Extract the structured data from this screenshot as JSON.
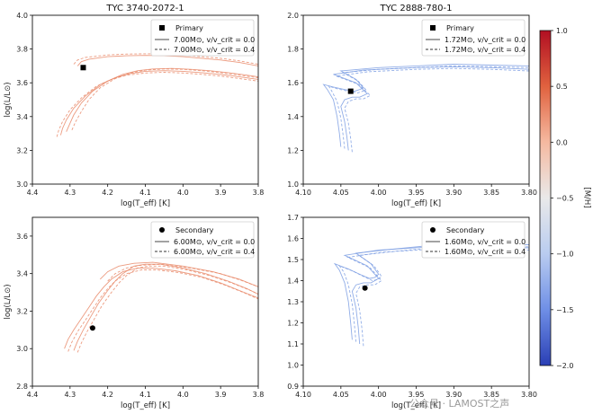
{
  "watermark": "公众号 · LAMOST之声",
  "colorbar": {
    "label": "[M/H]",
    "vmin": -2.0,
    "vmax": 1.0,
    "ticks": [
      "1.0",
      "0.5",
      "0.0",
      "−0.5",
      "−1.0",
      "−1.5",
      "−2.0"
    ],
    "colors": [
      "#2a3fb5",
      "#6f8fe6",
      "#b9ccf0",
      "#e9e9e9",
      "#f5b9a0",
      "#e0623f",
      "#b20f22"
    ]
  },
  "chart_data": [
    {
      "type": "line",
      "title": "TYC 3740-2072-1",
      "xlabel": "log(T_eff) [K]",
      "ylabel": "log(L/L⊙)",
      "xlim": [
        4.4,
        3.8
      ],
      "ylim": [
        3.0,
        4.0
      ],
      "xticks": [
        "4.4",
        "4.3",
        "4.2",
        "4.1",
        "4.0",
        "3.9",
        "3.8"
      ],
      "yticks": [
        "3.0",
        "3.2",
        "3.4",
        "3.6",
        "3.8",
        "4.0"
      ],
      "color": "#e98a6a",
      "legend": {
        "placement": "top-right",
        "star": "Primary",
        "marker": "square",
        "line1": "7.00M⊙, v/v_crit = 0.0",
        "line2": "7.00M⊙, v/v_crit = 0.4"
      },
      "star_point": {
        "x": 4.265,
        "y": 3.69
      },
      "series": [
        {
          "dashed": false,
          "x": [
            4.325,
            4.32,
            4.31,
            4.29,
            4.26,
            4.22,
            4.18,
            4.14,
            4.1,
            4.05,
            4.0,
            3.95,
            3.9,
            3.85,
            3.8
          ],
          "y": [
            3.29,
            3.33,
            3.38,
            3.45,
            3.52,
            3.59,
            3.63,
            3.655,
            3.668,
            3.672,
            3.668,
            3.66,
            3.65,
            3.635,
            3.62
          ]
        },
        {
          "dashed": false,
          "x": [
            4.31,
            4.3,
            4.29,
            4.27,
            4.24,
            4.2,
            4.16,
            4.12,
            4.08,
            4.03,
            3.98,
            3.93,
            3.88,
            3.83,
            3.8
          ],
          "y": [
            3.31,
            3.36,
            3.41,
            3.48,
            3.55,
            3.61,
            3.65,
            3.672,
            3.682,
            3.685,
            3.68,
            3.672,
            3.66,
            3.645,
            3.635
          ]
        },
        {
          "dashed": false,
          "x": [
            4.28,
            4.27,
            4.25,
            4.2,
            4.15,
            4.1,
            4.05,
            4.0,
            3.95,
            3.9,
            3.85,
            3.8
          ],
          "y": [
            3.7,
            3.725,
            3.74,
            3.755,
            3.76,
            3.762,
            3.76,
            3.755,
            3.745,
            3.735,
            3.72,
            3.7
          ]
        },
        {
          "dashed": true,
          "x": [
            4.335,
            4.33,
            4.32,
            4.3,
            4.27,
            4.23,
            4.19,
            4.15,
            4.1,
            4.05,
            4.0,
            3.95,
            3.9,
            3.85,
            3.8
          ],
          "y": [
            3.28,
            3.32,
            3.37,
            3.44,
            3.51,
            3.58,
            3.62,
            3.645,
            3.658,
            3.662,
            3.658,
            3.65,
            3.64,
            3.625,
            3.61
          ]
        },
        {
          "dashed": true,
          "x": [
            4.295,
            4.285,
            4.27,
            4.25,
            4.22,
            4.18,
            4.14,
            4.1,
            4.05,
            4.0,
            3.95,
            3.9,
            3.85,
            3.8
          ],
          "y": [
            3.32,
            3.37,
            3.43,
            3.5,
            3.57,
            3.625,
            3.658,
            3.675,
            3.682,
            3.68,
            3.672,
            3.66,
            3.645,
            3.63
          ]
        },
        {
          "dashed": true,
          "x": [
            4.29,
            4.28,
            4.26,
            4.2,
            4.15,
            4.1,
            4.05,
            4.0,
            3.95,
            3.9,
            3.85,
            3.8
          ],
          "y": [
            3.71,
            3.735,
            3.75,
            3.765,
            3.77,
            3.772,
            3.77,
            3.765,
            3.755,
            3.745,
            3.73,
            3.71
          ]
        }
      ]
    },
    {
      "type": "line",
      "title": "TYC 2888-780-1",
      "xlabel": "log(T_eff) [K]",
      "ylabel": "",
      "xlim": [
        4.1,
        3.8
      ],
      "ylim": [
        1.0,
        2.0
      ],
      "xticks": [
        "4.10",
        "4.05",
        "4.00",
        "3.95",
        "3.90",
        "3.85",
        "3.80"
      ],
      "yticks": [
        "1.0",
        "1.2",
        "1.4",
        "1.6",
        "1.8",
        "2.0"
      ],
      "color": "#7e9fe3",
      "legend": {
        "placement": "top-right",
        "star": "Primary",
        "marker": "square",
        "line1": "1.72M⊙, v/v_crit = 0.0",
        "line2": "1.72M⊙, v/v_crit = 0.4"
      },
      "star_point": {
        "x": 4.037,
        "y": 1.55
      },
      "series": [
        {
          "dashed": false,
          "x": [
            4.05,
            4.052,
            4.055,
            4.06,
            4.068,
            4.073,
            4.06,
            4.045,
            4.032,
            4.025,
            4.02,
            4.03,
            4.05,
            4.0,
            3.95,
            3.9,
            3.85,
            3.8
          ],
          "y": [
            1.22,
            1.3,
            1.4,
            1.5,
            1.56,
            1.59,
            1.575,
            1.56,
            1.55,
            1.56,
            1.57,
            1.62,
            1.67,
            1.69,
            1.7,
            1.71,
            1.705,
            1.7
          ]
        },
        {
          "dashed": false,
          "x": [
            4.04,
            4.042,
            4.045,
            4.05,
            4.045,
            4.035,
            4.025,
            4.015,
            4.03,
            4.06,
            4.02,
            3.95,
            3.9,
            3.85,
            3.8
          ],
          "y": [
            1.2,
            1.28,
            1.37,
            1.46,
            1.5,
            1.515,
            1.515,
            1.535,
            1.6,
            1.65,
            1.675,
            1.69,
            1.695,
            1.69,
            1.68
          ]
        },
        {
          "dashed": true,
          "x": [
            4.045,
            4.047,
            4.05,
            4.055,
            4.062,
            4.066,
            4.055,
            4.04,
            4.028,
            4.021,
            4.017,
            4.027,
            4.047,
            4.0,
            3.95,
            3.9,
            3.85,
            3.8
          ],
          "y": [
            1.21,
            1.29,
            1.39,
            1.49,
            1.55,
            1.58,
            1.565,
            1.55,
            1.54,
            1.55,
            1.56,
            1.61,
            1.66,
            1.68,
            1.69,
            1.7,
            1.695,
            1.69
          ]
        },
        {
          "dashed": true,
          "x": [
            4.035,
            4.037,
            4.04,
            4.045,
            4.04,
            4.03,
            4.02,
            4.011,
            4.026,
            4.056,
            4.015,
            3.95,
            3.9,
            3.85,
            3.8
          ],
          "y": [
            1.19,
            1.27,
            1.36,
            1.45,
            1.49,
            1.505,
            1.505,
            1.525,
            1.59,
            1.64,
            1.665,
            1.68,
            1.685,
            1.68,
            1.67
          ]
        }
      ]
    },
    {
      "type": "line",
      "title": "",
      "xlabel": "log(T_eff) [K]",
      "ylabel": "log(L/L⊙)",
      "xlim": [
        4.4,
        3.8
      ],
      "ylim": [
        2.8,
        3.7
      ],
      "xticks": [
        "4.4",
        "4.3",
        "4.2",
        "4.1",
        "4.0",
        "3.9",
        "3.8"
      ],
      "yticks": [
        "2.8",
        "3.0",
        "3.2",
        "3.4",
        "3.6"
      ],
      "color": "#e98a6a",
      "legend": {
        "placement": "top-right",
        "star": "Secondary",
        "marker": "circle",
        "line1": "6.00M⊙, v/v_crit = 0.0",
        "line2": "6.00M⊙, v/v_crit = 0.4"
      },
      "star_point": {
        "x": 4.24,
        "y": 3.11
      },
      "series": [
        {
          "dashed": false,
          "x": [
            4.315,
            4.305,
            4.29,
            4.27,
            4.25,
            4.23,
            4.21,
            4.19,
            4.16,
            4.12,
            4.08,
            4.02,
            3.96,
            3.9,
            3.85,
            3.8
          ],
          "y": [
            3.0,
            3.05,
            3.1,
            3.16,
            3.22,
            3.28,
            3.33,
            3.37,
            3.41,
            3.43,
            3.43,
            3.415,
            3.39,
            3.35,
            3.31,
            3.27
          ]
        },
        {
          "dashed": false,
          "x": [
            4.29,
            4.28,
            4.265,
            4.245,
            4.225,
            4.2,
            4.18,
            4.16,
            4.13,
            4.1,
            4.06,
            4.0,
            3.94,
            3.88,
            3.83,
            3.8
          ],
          "y": [
            2.99,
            3.04,
            3.1,
            3.17,
            3.24,
            3.31,
            3.36,
            3.4,
            3.44,
            3.45,
            3.45,
            3.43,
            3.4,
            3.36,
            3.32,
            3.29
          ]
        },
        {
          "dashed": false,
          "x": [
            4.22,
            4.2,
            4.17,
            4.13,
            4.08,
            4.0,
            3.92,
            3.85,
            3.8
          ],
          "y": [
            3.37,
            3.41,
            3.44,
            3.455,
            3.46,
            3.44,
            3.41,
            3.37,
            3.33
          ]
        },
        {
          "dashed": true,
          "x": [
            4.305,
            4.295,
            4.28,
            4.26,
            4.24,
            4.22,
            4.2,
            4.18,
            4.15,
            4.11,
            4.07,
            4.01,
            3.95,
            3.89,
            3.84,
            3.8
          ],
          "y": [
            2.985,
            3.035,
            3.09,
            3.15,
            3.21,
            3.27,
            3.32,
            3.36,
            3.4,
            3.42,
            3.42,
            3.405,
            3.38,
            3.34,
            3.3,
            3.265
          ]
        },
        {
          "dashed": true,
          "x": [
            4.28,
            4.27,
            4.255,
            4.235,
            4.215,
            4.19,
            4.17,
            4.15,
            4.12,
            4.09,
            4.05,
            3.99,
            3.93,
            3.87,
            3.82,
            3.8
          ],
          "y": [
            2.98,
            3.03,
            3.09,
            3.16,
            3.23,
            3.3,
            3.35,
            3.39,
            3.43,
            3.44,
            3.44,
            3.42,
            3.39,
            3.35,
            3.31,
            3.29
          ]
        },
        {
          "dashed": true,
          "x": [
            4.2,
            4.18,
            4.15,
            4.11,
            4.06,
            3.98,
            3.9,
            3.84,
            3.8
          ],
          "y": [
            3.36,
            3.4,
            3.43,
            3.445,
            3.45,
            3.43,
            3.4,
            3.36,
            3.33
          ]
        }
      ]
    },
    {
      "type": "line",
      "title": "",
      "xlabel": "log(T_eff) [K]",
      "ylabel": "",
      "xlim": [
        4.1,
        3.8
      ],
      "ylim": [
        0.9,
        1.7
      ],
      "xticks": [
        "4.10",
        "4.05",
        "4.00",
        "3.95",
        "3.90",
        "3.85",
        "3.80"
      ],
      "yticks": [
        "0.9",
        "1.0",
        "1.1",
        "1.2",
        "1.3",
        "1.4",
        "1.5",
        "1.6",
        "1.7"
      ],
      "color": "#7e9fe3",
      "legend": {
        "placement": "top-right",
        "star": "Secondary",
        "marker": "circle",
        "line1": "1.60M⊙, v/v_crit = 0.0",
        "line2": "1.60M⊙, v/v_crit = 0.4"
      },
      "star_point": {
        "x": 4.018,
        "y": 1.365
      },
      "series": [
        {
          "dashed": false,
          "x": [
            4.035,
            4.037,
            4.04,
            4.045,
            4.052,
            4.058,
            4.04,
            4.025,
            4.012,
            4.005,
            4.0,
            4.01,
            4.03,
            3.98,
            3.92,
            3.86,
            3.8
          ],
          "y": [
            1.12,
            1.2,
            1.3,
            1.39,
            1.45,
            1.48,
            1.455,
            1.43,
            1.41,
            1.415,
            1.43,
            1.48,
            1.53,
            1.55,
            1.57,
            1.575,
            1.57
          ]
        },
        {
          "dashed": false,
          "x": [
            4.025,
            4.027,
            4.03,
            4.035,
            4.03,
            4.02,
            4.01,
            4.0,
            4.015,
            4.045,
            4.0,
            3.93,
            3.87,
            3.8
          ],
          "y": [
            1.1,
            1.18,
            1.27,
            1.35,
            1.38,
            1.39,
            1.39,
            1.41,
            1.47,
            1.52,
            1.545,
            1.56,
            1.565,
            1.555
          ]
        },
        {
          "dashed": true,
          "x": [
            4.03,
            4.032,
            4.035,
            4.04,
            4.046,
            4.052,
            4.034,
            4.02,
            4.008,
            4.001,
            3.996,
            4.006,
            4.026,
            3.975,
            3.915,
            3.855,
            3.8
          ],
          "y": [
            1.11,
            1.19,
            1.29,
            1.38,
            1.44,
            1.47,
            1.445,
            1.42,
            1.4,
            1.405,
            1.42,
            1.47,
            1.52,
            1.54,
            1.56,
            1.565,
            1.56
          ]
        },
        {
          "dashed": true,
          "x": [
            4.02,
            4.022,
            4.025,
            4.03,
            4.025,
            4.015,
            4.005,
            3.996,
            4.011,
            4.041,
            3.995,
            3.925,
            3.865,
            3.8
          ],
          "y": [
            1.09,
            1.17,
            1.26,
            1.34,
            1.37,
            1.38,
            1.38,
            1.4,
            1.46,
            1.51,
            1.535,
            1.55,
            1.555,
            1.545
          ]
        }
      ]
    }
  ]
}
